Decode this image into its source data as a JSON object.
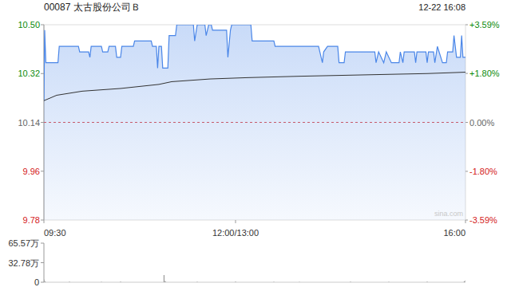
{
  "chart_data": [
    {
      "type": "line",
      "title": "00087 太古股份公司Ｂ",
      "subtitle": "12-22 16:08",
      "annotations": [
        "sina.com"
      ],
      "xlim": [
        0,
        330
      ],
      "xticks": [
        {
          "value": 0,
          "label": "09:30"
        },
        {
          "value": 150,
          "label": "12:00/13:00"
        },
        {
          "value": 330,
          "label": "16:00"
        }
      ],
      "ylim": [
        9.78,
        10.5
      ],
      "yticks": [
        {
          "value": 10.5,
          "label": "10.50"
        },
        10.32,
        10.14,
        9.96,
        9.78
      ],
      "y2lim": [
        -3.59,
        3.59
      ],
      "y2ticks": [
        {
          "value": 3.59,
          "label": "+3.59%"
        },
        {
          "value": 1.8,
          "label": "+1.80%"
        },
        {
          "value": 0,
          "label": "0.00%"
        },
        {
          "value": -1.8,
          "label": "-1.80%"
        },
        {
          "value": -3.59,
          "label": "-3.59%"
        }
      ],
      "grid": false,
      "series": [
        {
          "type": "area",
          "color": "#4a86e8",
          "x": [
            0,
            0.6,
            1.5,
            11,
            12,
            27,
            28,
            35,
            36,
            37,
            45,
            46,
            50,
            51,
            56,
            57,
            60,
            61,
            70,
            71,
            84,
            85,
            88,
            89,
            90,
            92,
            93,
            97,
            98,
            103,
            104,
            117,
            118,
            120,
            126,
            127,
            129,
            131,
            132,
            143,
            144,
            146,
            147,
            162,
            163,
            180,
            181,
            215,
            216,
            218,
            219,
            222,
            230,
            231,
            235,
            236,
            259,
            260,
            262,
            266,
            268,
            272,
            278,
            279,
            281,
            282,
            290,
            291,
            292,
            299,
            300,
            301,
            305,
            306,
            308,
            312,
            315,
            316,
            320,
            321,
            323,
            326,
            327,
            328,
            330
          ],
          "values": [
            10.22,
            10.48,
            10.36,
            10.36,
            10.42,
            10.42,
            10.4,
            10.4,
            10.38,
            10.42,
            10.42,
            10.4,
            10.4,
            10.42,
            10.42,
            10.38,
            10.38,
            10.42,
            10.42,
            10.44,
            10.44,
            10.42,
            10.42,
            10.34,
            10.42,
            10.42,
            10.34,
            10.34,
            10.46,
            10.46,
            10.5,
            10.5,
            10.44,
            10.5,
            10.5,
            10.46,
            10.5,
            10.5,
            10.48,
            10.48,
            10.38,
            10.48,
            10.5,
            10.5,
            10.44,
            10.44,
            10.42,
            10.42,
            10.4,
            10.36,
            10.4,
            10.42,
            10.42,
            10.36,
            10.36,
            10.4,
            10.4,
            10.36,
            10.4,
            10.36,
            10.4,
            10.36,
            10.36,
            10.4,
            10.36,
            10.4,
            10.4,
            10.36,
            10.4,
            10.4,
            10.36,
            10.4,
            10.4,
            10.36,
            10.42,
            10.36,
            10.36,
            10.4,
            10.4,
            10.46,
            10.38,
            10.38,
            10.46,
            10.38,
            10.38
          ]
        },
        {
          "type": "line",
          "color": "#333333",
          "x": [
            0,
            10,
            30,
            60,
            90,
            100,
            130,
            160,
            200,
            250,
            300,
            330
          ],
          "values": [
            10.22,
            10.24,
            10.255,
            10.265,
            10.28,
            10.29,
            10.3,
            10.305,
            10.31,
            10.315,
            10.32,
            10.325
          ]
        }
      ]
    },
    {
      "type": "bar",
      "xlim": [
        0,
        330
      ],
      "ylim": [
        0,
        655700
      ],
      "yticks": [
        {
          "value": 655700,
          "label": "65.57万"
        },
        {
          "value": 327800,
          "label": "32.78万"
        },
        0
      ],
      "tick_labels": "y",
      "color": "#888888",
      "x": [
        0,
        1,
        20,
        45,
        60,
        94,
        95,
        120,
        150,
        180,
        200,
        240,
        270,
        300,
        329,
        330
      ],
      "values": [
        45000,
        12000,
        8000,
        6000,
        9000,
        120000,
        20000,
        7000,
        10000,
        6000,
        5000,
        8000,
        6000,
        9000,
        15000,
        30000
      ]
    }
  ]
}
